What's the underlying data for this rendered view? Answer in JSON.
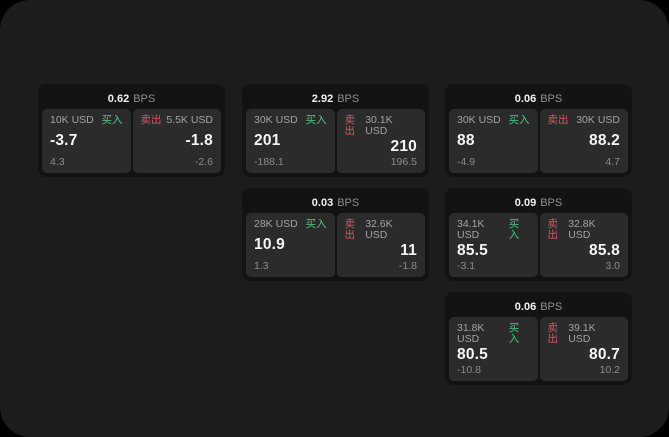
{
  "labels": {
    "buy": "买入",
    "sell": "卖出",
    "bps": "BPS"
  },
  "colors": {
    "screen_bg": "#1c1c1d",
    "card_bg": "#131314",
    "panel_bg": "#2b2b2c",
    "buy_green": "#4ec87b",
    "sell_red": "#db5461",
    "price_white": "#f5f5f5",
    "muted_gray": "#8b8b8b"
  },
  "cards": [
    {
      "bps": "0.62",
      "buy": {
        "notional": "10K USD",
        "price": "-3.7",
        "delta": "4.3"
      },
      "sell": {
        "notional": "5.5K USD",
        "price": "-1.8",
        "delta": "-2.6"
      }
    },
    {
      "bps": "2.92",
      "buy": {
        "notional": "30K USD",
        "price": "201",
        "delta": "-188.1"
      },
      "sell": {
        "notional": "30.1K USD",
        "price": "210",
        "delta": "196.5"
      }
    },
    {
      "bps": "0.06",
      "buy": {
        "notional": "30K USD",
        "price": "88",
        "delta": "-4.9"
      },
      "sell": {
        "notional": "30K USD",
        "price": "88.2",
        "delta": "4.7"
      }
    },
    {
      "bps": "0.03",
      "buy": {
        "notional": "28K USD",
        "price": "10.9",
        "delta": "1.3"
      },
      "sell": {
        "notional": "32.6K USD",
        "price": "11",
        "delta": "-1.8"
      }
    },
    {
      "bps": "0.09",
      "buy": {
        "notional": "34.1K USD",
        "price": "85.5",
        "delta": "-3.1"
      },
      "sell": {
        "notional": "32.8K USD",
        "price": "85.8",
        "delta": "3.0"
      }
    },
    {
      "bps": "0.06",
      "buy": {
        "notional": "31.8K USD",
        "price": "80.5",
        "delta": "-10.8"
      },
      "sell": {
        "notional": "39.1K USD",
        "price": "80.7",
        "delta": "10.2"
      }
    }
  ]
}
